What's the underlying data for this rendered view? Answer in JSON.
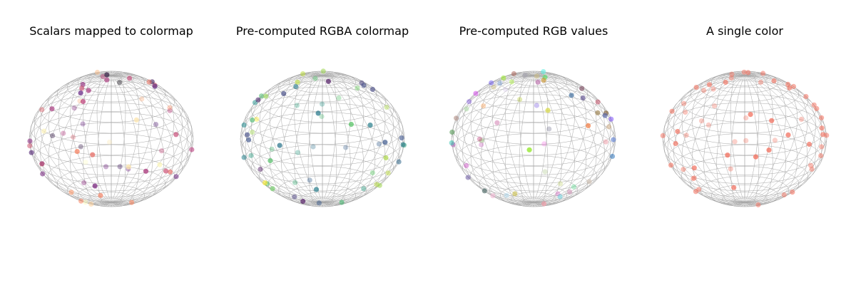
{
  "chart_data": [
    {
      "type": "scatter",
      "title": "Scalars mapped to colormap",
      "color_mode": "colormap",
      "colormap": "magma-like",
      "marker_alpha": 0.75,
      "n_points": 60,
      "axes_visible": false,
      "background": "wireframe-sphere"
    },
    {
      "type": "scatter",
      "title": "Pre-computed RGBA colormap",
      "color_mode": "rgba-colormap",
      "colormap": "viridis-like",
      "marker_alpha": 0.75,
      "n_points": 60,
      "axes_visible": false,
      "background": "wireframe-sphere"
    },
    {
      "type": "scatter",
      "title": "Pre-computed RGB values",
      "color_mode": "rgb",
      "marker_alpha": 0.75,
      "n_points": 60,
      "axes_visible": false,
      "background": "wireframe-sphere"
    },
    {
      "type": "scatter",
      "title": "A single color",
      "color_mode": "single",
      "single_color": "#f2705e",
      "marker_alpha": 0.75,
      "n_points": 60,
      "axes_visible": false,
      "background": "wireframe-sphere"
    }
  ]
}
